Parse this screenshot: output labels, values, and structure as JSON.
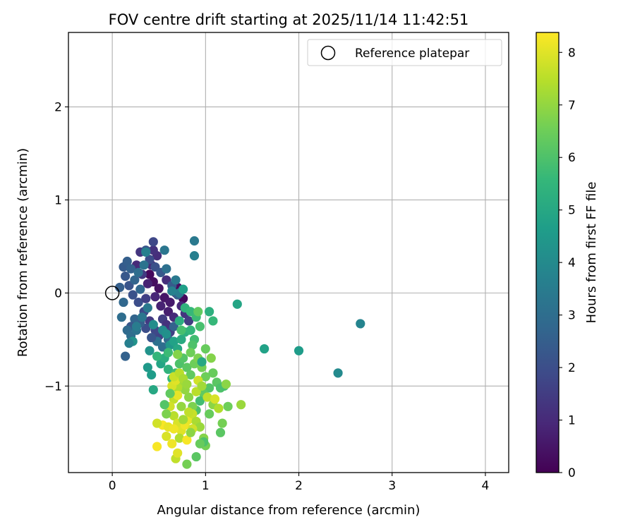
{
  "colors": {
    "grid": "#b0b0b0",
    "axis": "#000000",
    "background": "#ffffff"
  },
  "chart_data": {
    "type": "scatter",
    "title": "FOV centre drift starting at 2025/11/14 11:42:51",
    "xlabel": "Angular distance from reference (arcmin)",
    "ylabel": "Rotation from reference (arcmin)",
    "xlim": [
      -0.47,
      4.25
    ],
    "ylim": [
      -1.93,
      2.8
    ],
    "x_ticks": [
      0,
      1,
      2,
      3,
      4
    ],
    "x_tick_labels": [
      "0",
      "1",
      "2",
      "3",
      "4"
    ],
    "y_ticks": [
      -1,
      0,
      1,
      2
    ],
    "y_tick_labels": [
      "−1",
      "0",
      "1",
      "2"
    ],
    "grid": true,
    "legend_position": "top-right",
    "reference": {
      "name": "Reference platepar",
      "x": 0.0,
      "y": 0.0,
      "marker": "open-circle"
    },
    "colorbar": {
      "label": "Hours from first FF file",
      "colormap": "viridis",
      "min": 0,
      "max": 8.38,
      "ticks": [
        0,
        1,
        2,
        3,
        4,
        5,
        6,
        7,
        8
      ],
      "tick_labels": [
        "0",
        "1",
        "2",
        "3",
        "4",
        "5",
        "6",
        "7",
        "8"
      ]
    },
    "points": [
      {
        "x": 0.4,
        "y": 0.2,
        "h": 0.2
      },
      {
        "x": 0.44,
        "y": 0.12,
        "h": 0.3
      },
      {
        "x": 0.5,
        "y": 0.05,
        "h": 0.4
      },
      {
        "x": 0.56,
        "y": -0.05,
        "h": 0.5
      },
      {
        "x": 0.62,
        "y": -0.1,
        "h": 0.6
      },
      {
        "x": 0.68,
        "y": 0.0,
        "h": 0.1
      },
      {
        "x": 0.76,
        "y": -0.06,
        "h": 0.2
      },
      {
        "x": 0.7,
        "y": 0.06,
        "h": 0.3
      },
      {
        "x": 0.6,
        "y": -0.2,
        "h": 0.7
      },
      {
        "x": 0.52,
        "y": -0.14,
        "h": 0.8
      },
      {
        "x": 0.46,
        "y": -0.04,
        "h": 0.9
      },
      {
        "x": 0.42,
        "y": 0.3,
        "h": 1.0
      },
      {
        "x": 0.48,
        "y": 0.4,
        "h": 1.1
      },
      {
        "x": 0.44,
        "y": 0.46,
        "h": 1.2
      },
      {
        "x": 0.3,
        "y": 0.44,
        "h": 1.3
      },
      {
        "x": 0.26,
        "y": 0.3,
        "h": 1.0
      },
      {
        "x": 0.32,
        "y": 0.2,
        "h": 1.4
      },
      {
        "x": 0.38,
        "y": 0.1,
        "h": 0.8
      },
      {
        "x": 0.54,
        "y": -0.28,
        "h": 1.5
      },
      {
        "x": 0.58,
        "y": -0.34,
        "h": 1.2
      },
      {
        "x": 0.66,
        "y": -0.26,
        "h": 1.0
      },
      {
        "x": 0.62,
        "y": -0.42,
        "h": 1.6
      },
      {
        "x": 0.5,
        "y": -0.46,
        "h": 1.7
      },
      {
        "x": 0.46,
        "y": -0.4,
        "h": 1.8
      },
      {
        "x": 0.4,
        "y": -0.3,
        "h": 1.4
      },
      {
        "x": 0.34,
        "y": -0.2,
        "h": 1.9
      },
      {
        "x": 0.28,
        "y": -0.1,
        "h": 2.0
      },
      {
        "x": 0.22,
        "y": -0.02,
        "h": 2.1
      },
      {
        "x": 0.18,
        "y": 0.08,
        "h": 2.2
      },
      {
        "x": 0.14,
        "y": 0.18,
        "h": 2.3
      },
      {
        "x": 0.12,
        "y": 0.28,
        "h": 2.4
      },
      {
        "x": 0.16,
        "y": 0.34,
        "h": 2.5
      },
      {
        "x": 0.2,
        "y": 0.26,
        "h": 2.6
      },
      {
        "x": 0.24,
        "y": 0.14,
        "h": 2.7
      },
      {
        "x": 0.3,
        "y": 0.04,
        "h": 2.8
      },
      {
        "x": 0.36,
        "y": -0.06,
        "h": 1.6
      },
      {
        "x": 0.44,
        "y": 0.55,
        "h": 1.8
      },
      {
        "x": 0.36,
        "y": 0.46,
        "h": 2.2
      },
      {
        "x": 0.4,
        "y": 0.36,
        "h": 2.0
      },
      {
        "x": 0.46,
        "y": 0.28,
        "h": 2.1
      },
      {
        "x": 0.52,
        "y": 0.22,
        "h": 2.3
      },
      {
        "x": 0.58,
        "y": 0.14,
        "h": 1.1
      },
      {
        "x": 0.64,
        "y": 0.08,
        "h": 2.4
      },
      {
        "x": 0.7,
        "y": -0.02,
        "h": 2.5
      },
      {
        "x": 0.74,
        "y": -0.14,
        "h": 0.9
      },
      {
        "x": 0.78,
        "y": -0.22,
        "h": 1.3
      },
      {
        "x": 0.82,
        "y": -0.3,
        "h": 1.5
      },
      {
        "x": 0.66,
        "y": -0.36,
        "h": 2.6
      },
      {
        "x": 0.6,
        "y": -0.5,
        "h": 2.9
      },
      {
        "x": 0.54,
        "y": -0.58,
        "h": 3.0
      },
      {
        "x": 0.48,
        "y": -0.52,
        "h": 3.1
      },
      {
        "x": 0.42,
        "y": -0.48,
        "h": 2.2
      },
      {
        "x": 0.36,
        "y": -0.38,
        "h": 2.0
      },
      {
        "x": 0.3,
        "y": -0.32,
        "h": 2.5
      },
      {
        "x": 0.24,
        "y": -0.28,
        "h": 2.7
      },
      {
        "x": 0.2,
        "y": -0.36,
        "h": 2.3
      },
      {
        "x": 0.16,
        "y": -0.4,
        "h": 2.9
      },
      {
        "x": 0.2,
        "y": -0.46,
        "h": 3.0
      },
      {
        "x": 0.26,
        "y": -0.4,
        "h": 3.2
      },
      {
        "x": 0.32,
        "y": -0.26,
        "h": 3.3
      },
      {
        "x": 0.38,
        "y": -0.16,
        "h": 3.4
      },
      {
        "x": 0.1,
        "y": -0.26,
        "h": 3.0
      },
      {
        "x": 0.12,
        "y": -0.1,
        "h": 2.8
      },
      {
        "x": 0.08,
        "y": 0.06,
        "h": 2.5
      },
      {
        "x": 0.14,
        "y": -0.68,
        "h": 2.6
      },
      {
        "x": 0.22,
        "y": -0.52,
        "h": 4.3
      },
      {
        "x": 0.18,
        "y": -0.54,
        "h": 3.6
      },
      {
        "x": 0.26,
        "y": -0.36,
        "h": 3.5
      },
      {
        "x": 0.34,
        "y": 0.3,
        "h": 3.2
      },
      {
        "x": 0.28,
        "y": 0.22,
        "h": 3.0
      },
      {
        "x": 0.36,
        "y": 0.44,
        "h": 3.6
      },
      {
        "x": 0.56,
        "y": 0.46,
        "h": 3.3
      },
      {
        "x": 0.58,
        "y": 0.26,
        "h": 3.1
      },
      {
        "x": 0.68,
        "y": 0.14,
        "h": 3.4
      },
      {
        "x": 0.72,
        "y": 0.0,
        "h": 3.5
      },
      {
        "x": 0.64,
        "y": 0.02,
        "h": 3.7
      },
      {
        "x": 0.76,
        "y": 0.04,
        "h": 4.7
      },
      {
        "x": 0.88,
        "y": 0.56,
        "h": 3.4
      },
      {
        "x": 0.88,
        "y": 0.4,
        "h": 3.6
      },
      {
        "x": 1.34,
        "y": -0.12,
        "h": 4.9
      },
      {
        "x": 2.66,
        "y": -0.33,
        "h": 3.8
      },
      {
        "x": 2.42,
        "y": -0.86,
        "h": 4.0
      },
      {
        "x": 2.0,
        "y": -0.62,
        "h": 4.6
      },
      {
        "x": 1.63,
        "y": -0.6,
        "h": 4.8
      },
      {
        "x": 0.54,
        "y": -0.4,
        "h": 4.0
      },
      {
        "x": 0.58,
        "y": -0.44,
        "h": 4.2
      },
      {
        "x": 0.62,
        "y": -0.56,
        "h": 4.4
      },
      {
        "x": 0.66,
        "y": -0.52,
        "h": 4.8
      },
      {
        "x": 0.7,
        "y": -0.6,
        "h": 5.0
      },
      {
        "x": 0.74,
        "y": -0.5,
        "h": 5.1
      },
      {
        "x": 0.78,
        "y": -0.42,
        "h": 5.3
      },
      {
        "x": 0.72,
        "y": -0.3,
        "h": 5.2
      },
      {
        "x": 0.78,
        "y": -0.16,
        "h": 5.4
      },
      {
        "x": 0.84,
        "y": -0.2,
        "h": 5.6
      },
      {
        "x": 0.9,
        "y": -0.26,
        "h": 5.7
      },
      {
        "x": 0.84,
        "y": -0.4,
        "h": 5.5
      },
      {
        "x": 0.88,
        "y": -0.5,
        "h": 5.8
      },
      {
        "x": 0.94,
        "y": -0.36,
        "h": 5.9
      },
      {
        "x": 1.04,
        "y": -0.2,
        "h": 5.3
      },
      {
        "x": 1.08,
        "y": -0.3,
        "h": 5.6
      },
      {
        "x": 0.92,
        "y": -0.2,
        "h": 6.3
      },
      {
        "x": 0.44,
        "y": -0.34,
        "h": 4.1
      },
      {
        "x": 0.4,
        "y": -0.62,
        "h": 4.3
      },
      {
        "x": 0.38,
        "y": -0.8,
        "h": 4.5
      },
      {
        "x": 0.42,
        "y": -0.88,
        "h": 4.6
      },
      {
        "x": 0.44,
        "y": -1.04,
        "h": 5.0
      },
      {
        "x": 0.52,
        "y": -0.76,
        "h": 4.9
      },
      {
        "x": 0.56,
        "y": -0.7,
        "h": 5.2
      },
      {
        "x": 0.6,
        "y": -0.82,
        "h": 5.4
      },
      {
        "x": 0.64,
        "y": -0.92,
        "h": 5.6
      },
      {
        "x": 0.68,
        "y": -0.86,
        "h": 5.8
      },
      {
        "x": 0.72,
        "y": -0.76,
        "h": 6.0
      },
      {
        "x": 0.76,
        "y": -0.7,
        "h": 6.1
      },
      {
        "x": 0.8,
        "y": -0.8,
        "h": 6.2
      },
      {
        "x": 0.84,
        "y": -0.88,
        "h": 6.3
      },
      {
        "x": 0.88,
        "y": -0.76,
        "h": 6.5
      },
      {
        "x": 0.92,
        "y": -0.7,
        "h": 6.7
      },
      {
        "x": 0.96,
        "y": -0.8,
        "h": 6.6
      },
      {
        "x": 1.0,
        "y": -0.9,
        "h": 6.5
      },
      {
        "x": 1.06,
        "y": -0.7,
        "h": 6.8
      },
      {
        "x": 1.08,
        "y": -0.86,
        "h": 6.4
      },
      {
        "x": 1.12,
        "y": -0.96,
        "h": 6.2
      },
      {
        "x": 1.16,
        "y": -1.02,
        "h": 6.0
      },
      {
        "x": 1.2,
        "y": -1.0,
        "h": 5.9
      },
      {
        "x": 1.22,
        "y": -0.98,
        "h": 6.9
      },
      {
        "x": 1.04,
        "y": -1.02,
        "h": 6.1
      },
      {
        "x": 0.98,
        "y": -1.08,
        "h": 6.3
      },
      {
        "x": 0.94,
        "y": -1.16,
        "h": 5.8
      },
      {
        "x": 0.9,
        "y": -1.26,
        "h": 6.0
      },
      {
        "x": 0.86,
        "y": -1.22,
        "h": 6.7
      },
      {
        "x": 0.82,
        "y": -1.12,
        "h": 6.9
      },
      {
        "x": 0.78,
        "y": -1.04,
        "h": 7.0
      },
      {
        "x": 0.74,
        "y": -0.96,
        "h": 7.2
      },
      {
        "x": 0.7,
        "y": -1.02,
        "h": 7.4
      },
      {
        "x": 0.66,
        "y": -1.14,
        "h": 7.6
      },
      {
        "x": 0.62,
        "y": -1.22,
        "h": 7.8
      },
      {
        "x": 0.66,
        "y": -1.32,
        "h": 7.5
      },
      {
        "x": 0.7,
        "y": -1.4,
        "h": 7.9
      },
      {
        "x": 0.74,
        "y": -1.48,
        "h": 8.0
      },
      {
        "x": 0.78,
        "y": -1.42,
        "h": 8.2
      },
      {
        "x": 0.82,
        "y": -1.36,
        "h": 8.1
      },
      {
        "x": 0.86,
        "y": -1.3,
        "h": 7.7
      },
      {
        "x": 0.9,
        "y": -1.38,
        "h": 7.3
      },
      {
        "x": 0.94,
        "y": -1.44,
        "h": 7.1
      },
      {
        "x": 0.98,
        "y": -1.56,
        "h": 6.8
      },
      {
        "x": 1.0,
        "y": -1.64,
        "h": 6.6
      },
      {
        "x": 1.04,
        "y": -1.3,
        "h": 6.4
      },
      {
        "x": 1.08,
        "y": -1.2,
        "h": 6.9
      },
      {
        "x": 1.14,
        "y": -1.24,
        "h": 7.4
      },
      {
        "x": 1.18,
        "y": -1.4,
        "h": 6.6
      },
      {
        "x": 1.16,
        "y": -1.5,
        "h": 6.2
      },
      {
        "x": 1.24,
        "y": -1.22,
        "h": 6.5
      },
      {
        "x": 1.38,
        "y": -1.2,
        "h": 7.1
      },
      {
        "x": 0.98,
        "y": -1.6,
        "h": 6.0
      },
      {
        "x": 0.94,
        "y": -1.62,
        "h": 6.4
      },
      {
        "x": 0.9,
        "y": -1.76,
        "h": 6.2
      },
      {
        "x": 0.8,
        "y": -1.84,
        "h": 6.6
      },
      {
        "x": 0.68,
        "y": -1.78,
        "h": 7.6
      },
      {
        "x": 0.7,
        "y": -1.72,
        "h": 8.0
      },
      {
        "x": 0.64,
        "y": -1.62,
        "h": 8.2
      },
      {
        "x": 0.58,
        "y": -1.54,
        "h": 7.9
      },
      {
        "x": 0.54,
        "y": -1.42,
        "h": 8.3
      },
      {
        "x": 0.48,
        "y": -1.4,
        "h": 7.8
      },
      {
        "x": 0.48,
        "y": -1.65,
        "h": 8.3
      },
      {
        "x": 0.6,
        "y": -1.44,
        "h": 8.1
      },
      {
        "x": 0.66,
        "y": -1.46,
        "h": 8.2
      },
      {
        "x": 0.72,
        "y": -1.56,
        "h": 7.4
      },
      {
        "x": 0.76,
        "y": -1.36,
        "h": 7.2
      },
      {
        "x": 0.82,
        "y": -1.28,
        "h": 7.6
      },
      {
        "x": 0.86,
        "y": -1.46,
        "h": 7.8
      },
      {
        "x": 0.8,
        "y": -1.58,
        "h": 8.3
      },
      {
        "x": 0.84,
        "y": -1.5,
        "h": 6.9
      },
      {
        "x": 0.74,
        "y": -1.22,
        "h": 7.0
      },
      {
        "x": 0.7,
        "y": -1.1,
        "h": 8.1
      },
      {
        "x": 0.64,
        "y": -1.0,
        "h": 7.9
      },
      {
        "x": 0.68,
        "y": -0.94,
        "h": 8.0
      },
      {
        "x": 0.66,
        "y": -0.9,
        "h": 7.7
      },
      {
        "x": 0.72,
        "y": -0.86,
        "h": 7.5
      },
      {
        "x": 0.76,
        "y": -0.92,
        "h": 7.3
      },
      {
        "x": 0.8,
        "y": -0.98,
        "h": 7.1
      },
      {
        "x": 0.9,
        "y": -1.06,
        "h": 7.5
      },
      {
        "x": 0.92,
        "y": -0.94,
        "h": 7.8
      },
      {
        "x": 0.96,
        "y": -1.0,
        "h": 7.2
      },
      {
        "x": 1.02,
        "y": -1.12,
        "h": 7.6
      },
      {
        "x": 1.1,
        "y": -1.14,
        "h": 7.9
      },
      {
        "x": 0.62,
        "y": -1.08,
        "h": 6.3
      },
      {
        "x": 0.58,
        "y": -1.3,
        "h": 6.7
      },
      {
        "x": 0.56,
        "y": -1.2,
        "h": 6.1
      },
      {
        "x": 0.96,
        "y": -0.74,
        "h": 5.0
      },
      {
        "x": 1.0,
        "y": -0.6,
        "h": 6.4
      },
      {
        "x": 0.6,
        "y": -0.64,
        "h": 5.7
      },
      {
        "x": 0.48,
        "y": -0.68,
        "h": 5.5
      },
      {
        "x": 0.7,
        "y": -0.66,
        "h": 6.8
      },
      {
        "x": 0.74,
        "y": -0.4,
        "h": 5.9
      },
      {
        "x": 0.86,
        "y": -0.56,
        "h": 6.0
      },
      {
        "x": 0.84,
        "y": -0.64,
        "h": 6.5
      }
    ]
  }
}
